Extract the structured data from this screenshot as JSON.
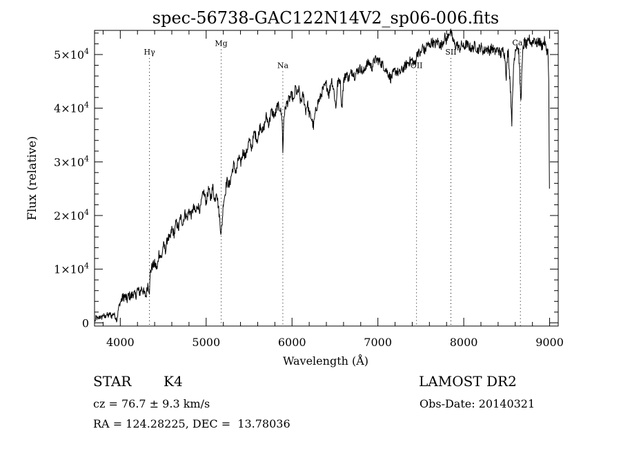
{
  "chart_data": {
    "type": "line",
    "title": "spec-56738-GAC122N14V2_sp06-006.fits",
    "xlabel": "Wavelength (Å)",
    "ylabel": "Flux (relative)",
    "xlim": [
      3700,
      9100
    ],
    "ylim": [
      -600,
      54500
    ],
    "x_ticks": [
      {
        "value": 4000,
        "label": "4000"
      },
      {
        "value": 5000,
        "label": "5000"
      },
      {
        "value": 6000,
        "label": "6000"
      },
      {
        "value": 7000,
        "label": "7000"
      },
      {
        "value": 8000,
        "label": "8000"
      },
      {
        "value": 9000,
        "label": "9000"
      }
    ],
    "y_ticks": [
      {
        "value": 0,
        "mantissa": "0",
        "exp": ""
      },
      {
        "value": 10000,
        "mantissa": "1×10",
        "exp": "4"
      },
      {
        "value": 20000,
        "mantissa": "2×10",
        "exp": "4"
      },
      {
        "value": 30000,
        "mantissa": "3×10",
        "exp": "4"
      },
      {
        "value": 40000,
        "mantissa": "4×10",
        "exp": "4"
      },
      {
        "value": 50000,
        "mantissa": "5×10",
        "exp": "4"
      }
    ],
    "lines": [
      {
        "label": "Hγ",
        "x": 4340,
        "label_y": 50000
      },
      {
        "label": "Mg",
        "x": 5175,
        "label_y": 51600
      },
      {
        "label": "Na",
        "x": 5893,
        "label_y": 47500
      },
      {
        "label": "OII",
        "x": 7450,
        "label_y": 47500
      },
      {
        "label": "SII",
        "x": 7850,
        "label_y": 50000
      },
      {
        "label": "CaII",
        "x": 8660,
        "label_y": 51700
      }
    ],
    "series": [
      {
        "points": [
          [
            3705,
            300
          ],
          [
            3720,
            1100
          ],
          [
            3740,
            600
          ],
          [
            3760,
            1200
          ],
          [
            3780,
            900
          ],
          [
            3800,
            1500
          ],
          [
            3820,
            1000
          ],
          [
            3840,
            1600
          ],
          [
            3860,
            1300
          ],
          [
            3880,
            1700
          ],
          [
            3900,
            1200
          ],
          [
            3920,
            1800
          ],
          [
            3940,
            1200
          ],
          [
            3960,
            500
          ],
          [
            3970,
            1500
          ],
          [
            3980,
            2800
          ],
          [
            4000,
            3800
          ],
          [
            4020,
            4500
          ],
          [
            4050,
            5000
          ],
          [
            4080,
            4300
          ],
          [
            4100,
            5200
          ],
          [
            4120,
            4800
          ],
          [
            4150,
            5500
          ],
          [
            4180,
            5000
          ],
          [
            4200,
            6200
          ],
          [
            4230,
            5600
          ],
          [
            4250,
            6600
          ],
          [
            4280,
            5400
          ],
          [
            4300,
            5000
          ],
          [
            4320,
            7200
          ],
          [
            4340,
            6000
          ],
          [
            4350,
            9500
          ],
          [
            4370,
            10500
          ],
          [
            4400,
            11000
          ],
          [
            4430,
            10000
          ],
          [
            4450,
            13000
          ],
          [
            4480,
            12000
          ],
          [
            4500,
            14500
          ],
          [
            4530,
            13500
          ],
          [
            4550,
            16000
          ],
          [
            4580,
            15500
          ],
          [
            4600,
            17500
          ],
          [
            4630,
            16500
          ],
          [
            4650,
            18800
          ],
          [
            4680,
            17500
          ],
          [
            4700,
            19800
          ],
          [
            4730,
            18500
          ],
          [
            4750,
            20500
          ],
          [
            4780,
            19500
          ],
          [
            4800,
            21000
          ],
          [
            4830,
            20000
          ],
          [
            4850,
            21500
          ],
          [
            4880,
            20500
          ],
          [
            4900,
            22000
          ],
          [
            4930,
            21000
          ],
          [
            4950,
            23000
          ],
          [
            4970,
            24500
          ],
          [
            5000,
            22500
          ],
          [
            5030,
            25000
          ],
          [
            5050,
            23000
          ],
          [
            5080,
            25500
          ],
          [
            5100,
            22500
          ],
          [
            5120,
            24800
          ],
          [
            5150,
            20500
          ],
          [
            5165,
            18000
          ],
          [
            5175,
            16500
          ],
          [
            5190,
            19500
          ],
          [
            5200,
            22500
          ],
          [
            5220,
            24000
          ],
          [
            5240,
            26500
          ],
          [
            5270,
            25500
          ],
          [
            5300,
            28000
          ],
          [
            5320,
            29500
          ],
          [
            5350,
            28000
          ],
          [
            5380,
            31000
          ],
          [
            5400,
            29500
          ],
          [
            5430,
            32000
          ],
          [
            5460,
            31000
          ],
          [
            5500,
            34000
          ],
          [
            5530,
            32500
          ],
          [
            5560,
            35500
          ],
          [
            5600,
            34000
          ],
          [
            5630,
            37000
          ],
          [
            5660,
            35500
          ],
          [
            5700,
            38500
          ],
          [
            5730,
            37000
          ],
          [
            5760,
            39500
          ],
          [
            5800,
            38500
          ],
          [
            5830,
            40500
          ],
          [
            5860,
            40000
          ],
          [
            5885,
            38000
          ],
          [
            5893,
            31500
          ],
          [
            5905,
            38500
          ],
          [
            5930,
            40500
          ],
          [
            5960,
            41500
          ],
          [
            6000,
            42500
          ],
          [
            6020,
            41000
          ],
          [
            6040,
            44000
          ],
          [
            6060,
            42500
          ],
          [
            6080,
            43500
          ],
          [
            6100,
            41000
          ],
          [
            6130,
            42500
          ],
          [
            6160,
            39500
          ],
          [
            6180,
            41000
          ],
          [
            6200,
            39000
          ],
          [
            6230,
            38000
          ],
          [
            6250,
            36500
          ],
          [
            6270,
            39000
          ],
          [
            6300,
            41000
          ],
          [
            6330,
            42000
          ],
          [
            6360,
            43500
          ],
          [
            6400,
            44500
          ],
          [
            6430,
            42500
          ],
          [
            6460,
            45500
          ],
          [
            6490,
            43000
          ],
          [
            6510,
            40000
          ],
          [
            6530,
            44500
          ],
          [
            6560,
            45500
          ],
          [
            6580,
            40000
          ],
          [
            6600,
            45000
          ],
          [
            6630,
            46500
          ],
          [
            6660,
            45500
          ],
          [
            6700,
            47000
          ],
          [
            6730,
            46000
          ],
          [
            6760,
            47000
          ],
          [
            6800,
            47500
          ],
          [
            6830,
            46500
          ],
          [
            6860,
            48000
          ],
          [
            6900,
            48500
          ],
          [
            6930,
            47500
          ],
          [
            6960,
            49000
          ],
          [
            7000,
            49000
          ],
          [
            7030,
            48500
          ],
          [
            7060,
            48000
          ],
          [
            7100,
            47000
          ],
          [
            7120,
            46500
          ],
          [
            7150,
            45500
          ],
          [
            7180,
            46500
          ],
          [
            7200,
            47000
          ],
          [
            7250,
            46500
          ],
          [
            7300,
            47500
          ],
          [
            7350,
            48500
          ],
          [
            7400,
            49000
          ],
          [
            7430,
            48000
          ],
          [
            7460,
            50500
          ],
          [
            7500,
            50000
          ],
          [
            7520,
            51500
          ],
          [
            7550,
            50500
          ],
          [
            7570,
            52000
          ],
          [
            7600,
            51500
          ],
          [
            7630,
            52500
          ],
          [
            7660,
            51800
          ],
          [
            7700,
            52500
          ],
          [
            7730,
            51500
          ],
          [
            7760,
            52500
          ],
          [
            7780,
            53200
          ],
          [
            7800,
            52500
          ],
          [
            7820,
            53800
          ],
          [
            7840,
            54300
          ],
          [
            7860,
            53500
          ],
          [
            7880,
            52500
          ],
          [
            7900,
            51500
          ],
          [
            7920,
            52000
          ],
          [
            7950,
            51000
          ],
          [
            7980,
            52000
          ],
          [
            8000,
            51200
          ],
          [
            8030,
            52000
          ],
          [
            8060,
            51500
          ],
          [
            8100,
            51000
          ],
          [
            8130,
            51800
          ],
          [
            8160,
            50800
          ],
          [
            8200,
            51500
          ],
          [
            8230,
            50500
          ],
          [
            8260,
            51200
          ],
          [
            8300,
            50700
          ],
          [
            8330,
            51300
          ],
          [
            8360,
            50500
          ],
          [
            8400,
            51000
          ],
          [
            8430,
            50000
          ],
          [
            8460,
            51000
          ],
          [
            8480,
            49500
          ],
          [
            8495,
            46000
          ],
          [
            8510,
            50000
          ],
          [
            8520,
            50500
          ],
          [
            8530,
            47000
          ],
          [
            8540,
            45000
          ],
          [
            8550,
            41000
          ],
          [
            8560,
            37500
          ],
          [
            8570,
            42500
          ],
          [
            8580,
            48000
          ],
          [
            8600,
            51000
          ],
          [
            8620,
            51800
          ],
          [
            8640,
            50500
          ],
          [
            8655,
            45000
          ],
          [
            8665,
            41000
          ],
          [
            8675,
            46000
          ],
          [
            8690,
            51000
          ],
          [
            8710,
            52500
          ],
          [
            8730,
            51500
          ],
          [
            8760,
            53000
          ],
          [
            8790,
            52000
          ],
          [
            8820,
            53000
          ],
          [
            8850,
            52000
          ],
          [
            8880,
            52500
          ],
          [
            8910,
            51500
          ],
          [
            8940,
            52500
          ],
          [
            8960,
            51000
          ],
          [
            8980,
            50500
          ],
          [
            8990,
            45000
          ],
          [
            8995,
            32000
          ],
          [
            8998,
            25000
          ]
        ]
      }
    ]
  },
  "info": {
    "object_type": "STAR",
    "spectral_class": "K4",
    "cz": "cz = 76.7 ± 9.3 km/s",
    "coords": "RA = 124.28225, DEC =  13.78036",
    "survey": "LAMOST DR2",
    "obs_date": "Obs-Date: 20140321"
  }
}
